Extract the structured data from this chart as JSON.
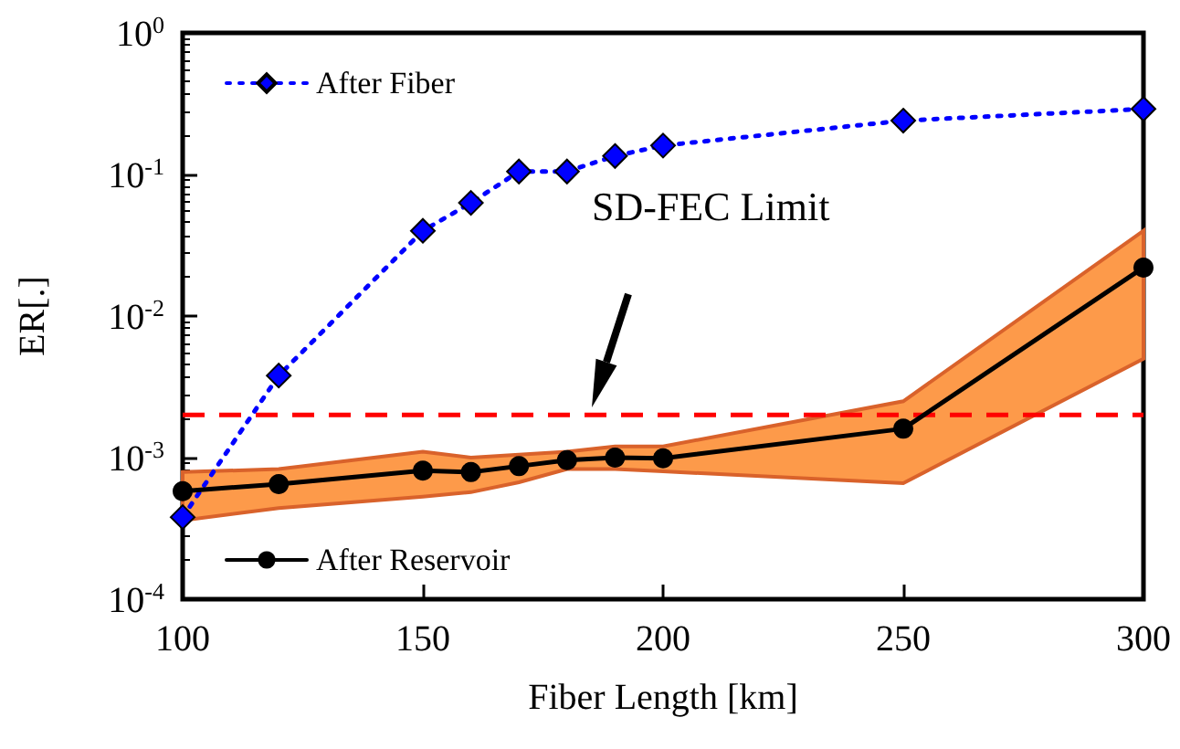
{
  "chart_data": {
    "type": "line",
    "xlabel": "Fiber Length [km]",
    "ylabel": "ER[.]",
    "log": "y",
    "x": [
      100,
      120,
      150,
      160,
      170,
      180,
      190,
      200,
      250,
      300
    ],
    "xlim": [
      100,
      300
    ],
    "xticks": [
      100,
      150,
      200,
      250,
      300
    ],
    "ylim": [
      0.0001,
      1
    ],
    "yticks": [
      {
        "value": 0.0001,
        "label": "10$^{-4}$"
      },
      {
        "value": 0.001,
        "label": "10$^{-3}$"
      },
      {
        "value": 0.01,
        "label": "10$^{-2}$"
      },
      {
        "value": 0.1,
        "label": "10$^{-1}$"
      },
      {
        "value": 1,
        "label": "10$^{0}$"
      }
    ],
    "series": [
      {
        "name": "After Fiber",
        "color": "#0000ff",
        "marker": "diamond",
        "line_style": "dotted",
        "values": [
          0.00038,
          0.0038,
          0.04,
          0.063,
          0.105,
          0.105,
          0.135,
          0.16,
          0.24,
          0.29
        ]
      },
      {
        "name": "After Reservoir",
        "color": "#000000",
        "marker": "circle",
        "line_style": "solid",
        "values": [
          0.00058,
          0.00065,
          0.00081,
          0.00079,
          0.00087,
          0.00096,
          0.001,
          0.00099,
          0.0016,
          0.022
        ],
        "lower": [
          0.00036,
          0.00044,
          0.00053,
          0.00057,
          0.00067,
          0.00083,
          0.00083,
          0.0008,
          0.00066,
          0.005
        ],
        "upper": [
          0.00079,
          0.00083,
          0.0011,
          0.001,
          0.00105,
          0.0011,
          0.0012,
          0.0012,
          0.0025,
          0.04
        ]
      }
    ],
    "ref_lines": [
      {
        "axis": "y",
        "value": 0.002,
        "color": "#ff0000",
        "line_style": "dashed"
      }
    ],
    "annotations": [
      "SD-FEC Limit"
    ],
    "legend": "left",
    "grid": false
  }
}
